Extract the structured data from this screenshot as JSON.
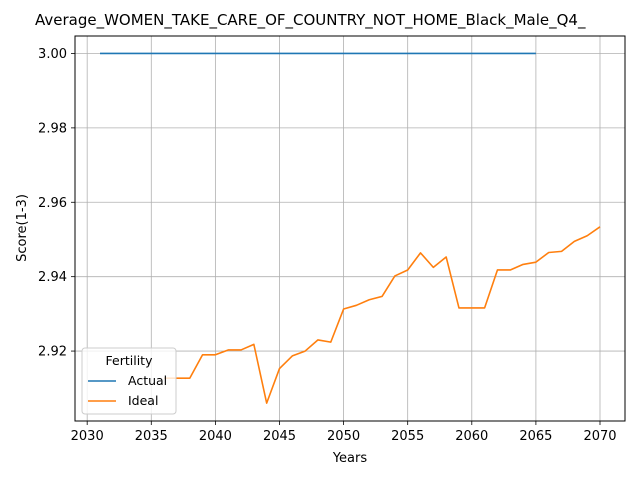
{
  "chart_data": {
    "type": "line",
    "title": "Average_WOMEN_TAKE_CARE_OF_COUNTRY_NOT_HOME_Black_Male_Q4_",
    "xlabel": "Years",
    "ylabel": "Score(1-3)",
    "xlim": [
      2029.05,
      2071.95
    ],
    "ylim": [
      2.9012,
      3.0047
    ],
    "grid": true,
    "x_ticks": [
      2030,
      2035,
      2040,
      2045,
      2050,
      2055,
      2060,
      2065,
      2070
    ],
    "x_tick_labels": [
      "2030",
      "2035",
      "2040",
      "2045",
      "2050",
      "2055",
      "2060",
      "2065",
      "2070"
    ],
    "y_ticks": [
      2.92,
      2.94,
      2.96,
      2.98,
      3.0
    ],
    "y_tick_labels": [
      "2.92",
      "2.94",
      "2.96",
      "2.98",
      "3.00"
    ],
    "legend": {
      "title": "Fertility",
      "placement": "lower-left"
    },
    "series": [
      {
        "name": "Actual",
        "color": "#1f77b4",
        "x": [
          2031,
          2032,
          2033,
          2034,
          2035,
          2036,
          2037,
          2038,
          2039,
          2040,
          2041,
          2042,
          2043,
          2044,
          2045,
          2046,
          2047,
          2048,
          2049,
          2050,
          2051,
          2052,
          2053,
          2054,
          2055,
          2056,
          2057,
          2058,
          2059,
          2060,
          2061,
          2062,
          2063,
          2064,
          2065
        ],
        "y": [
          3.0,
          3.0,
          3.0,
          3.0,
          3.0,
          3.0,
          3.0,
          3.0,
          3.0,
          3.0,
          3.0,
          3.0,
          3.0,
          3.0,
          3.0,
          3.0,
          3.0,
          3.0,
          3.0,
          3.0,
          3.0,
          3.0,
          3.0,
          3.0,
          3.0,
          3.0,
          3.0,
          3.0,
          3.0,
          3.0,
          3.0,
          3.0,
          3.0,
          3.0,
          3.0
        ]
      },
      {
        "name": "Ideal",
        "color": "#ff7f0e",
        "x": [
          2036,
          2037,
          2038,
          2039,
          2040,
          2041,
          2042,
          2043,
          2044,
          2045,
          2046,
          2047,
          2048,
          2049,
          2050,
          2051,
          2052,
          2053,
          2054,
          2055,
          2056,
          2057,
          2058,
          2059,
          2060,
          2061,
          2062,
          2063,
          2064,
          2065,
          2066,
          2067,
          2068,
          2069,
          2070
        ],
        "y": [
          2.9127,
          2.9127,
          2.9127,
          2.919,
          2.919,
          2.9203,
          2.9203,
          2.9218,
          2.906,
          2.9153,
          2.9187,
          2.92,
          2.923,
          2.9224,
          2.9313,
          2.9323,
          2.9338,
          2.9347,
          2.9402,
          2.9418,
          2.9464,
          2.9425,
          2.9453,
          2.9316,
          2.9316,
          2.9316,
          2.9418,
          2.9418,
          2.9433,
          2.9439,
          2.9465,
          2.9468,
          2.9495,
          2.951,
          2.9534
        ]
      }
    ]
  }
}
